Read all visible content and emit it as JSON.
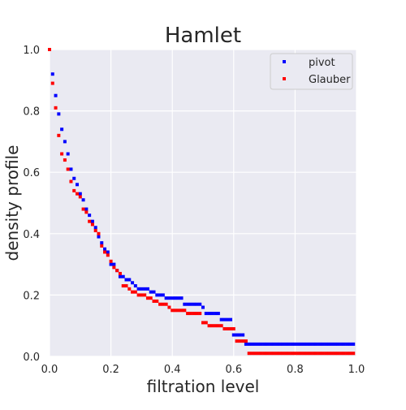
{
  "chart_data": {
    "type": "scatter",
    "title": "Hamlet",
    "xlabel": "filtration level",
    "ylabel": "density profile",
    "xlim": [
      0,
      1
    ],
    "ylim": [
      0,
      1
    ],
    "xticks": [
      "0.0",
      "0.2",
      "0.4",
      "0.6",
      "0.8",
      "1.0"
    ],
    "yticks": [
      "0.0",
      "0.2",
      "0.4",
      "0.6",
      "0.8",
      "1.0"
    ],
    "grid": true,
    "legend_position": "top-right",
    "colors": {
      "background": "#EAEAF2",
      "grid": "#FFFFFF",
      "pivot": "#0000FF",
      "glauber": "#FF0000"
    },
    "series": [
      {
        "name": "pivot",
        "color": "#0000FF",
        "x": [
          0.0,
          0.01,
          0.02,
          0.03,
          0.04,
          0.05,
          0.06,
          0.07,
          0.08,
          0.09,
          0.1,
          0.11,
          0.12,
          0.13,
          0.14,
          0.15,
          0.16,
          0.17,
          0.18,
          0.19,
          0.2,
          0.21,
          0.22,
          0.23,
          0.24,
          0.25,
          0.26,
          0.27,
          0.28,
          0.29,
          0.3,
          0.31,
          0.32,
          0.33,
          0.34,
          0.35,
          0.36,
          0.37,
          0.38,
          0.39,
          0.4,
          0.41,
          0.42,
          0.43,
          0.44,
          0.45,
          0.46,
          0.47,
          0.48,
          0.49,
          0.5,
          0.51,
          0.52,
          0.53,
          0.54,
          0.55,
          0.56,
          0.57,
          0.58,
          0.59,
          0.6,
          0.61,
          0.62,
          0.63,
          0.64,
          0.65,
          0.66,
          0.67,
          0.68,
          0.69,
          0.7,
          0.71,
          0.72,
          0.73,
          0.74,
          0.75,
          0.76,
          0.77,
          0.78,
          0.79,
          0.8,
          0.81,
          0.82,
          0.83,
          0.84,
          0.85,
          0.86,
          0.87,
          0.88,
          0.89,
          0.9,
          0.91,
          0.92,
          0.93,
          0.94,
          0.95,
          0.96,
          0.97,
          0.98,
          0.99
        ],
        "y": [
          1.0,
          0.92,
          0.85,
          0.79,
          0.74,
          0.7,
          0.66,
          0.61,
          0.58,
          0.56,
          0.53,
          0.51,
          0.48,
          0.46,
          0.44,
          0.42,
          0.39,
          0.37,
          0.35,
          0.34,
          0.3,
          0.3,
          0.28,
          0.26,
          0.26,
          0.25,
          0.25,
          0.24,
          0.23,
          0.22,
          0.22,
          0.22,
          0.22,
          0.21,
          0.21,
          0.2,
          0.2,
          0.2,
          0.19,
          0.19,
          0.19,
          0.19,
          0.19,
          0.19,
          0.17,
          0.17,
          0.17,
          0.17,
          0.17,
          0.17,
          0.16,
          0.14,
          0.14,
          0.14,
          0.14,
          0.14,
          0.12,
          0.12,
          0.12,
          0.12,
          0.07,
          0.07,
          0.07,
          0.07,
          0.04,
          0.04,
          0.04,
          0.04,
          0.04,
          0.04,
          0.04,
          0.04,
          0.04,
          0.04,
          0.04,
          0.04,
          0.04,
          0.04,
          0.04,
          0.04,
          0.04,
          0.04,
          0.04,
          0.04,
          0.04,
          0.04,
          0.04,
          0.04,
          0.04,
          0.04,
          0.04,
          0.04,
          0.04,
          0.04,
          0.04,
          0.04,
          0.04,
          0.04,
          0.04,
          0.04
        ]
      },
      {
        "name": "Glauber",
        "color": "#FF0000",
        "x": [
          0.0,
          0.01,
          0.02,
          0.03,
          0.04,
          0.05,
          0.06,
          0.07,
          0.08,
          0.09,
          0.1,
          0.11,
          0.12,
          0.13,
          0.14,
          0.15,
          0.16,
          0.17,
          0.18,
          0.19,
          0.2,
          0.21,
          0.22,
          0.23,
          0.24,
          0.25,
          0.26,
          0.27,
          0.28,
          0.29,
          0.3,
          0.31,
          0.32,
          0.33,
          0.34,
          0.35,
          0.36,
          0.37,
          0.38,
          0.39,
          0.4,
          0.41,
          0.42,
          0.43,
          0.44,
          0.45,
          0.46,
          0.47,
          0.48,
          0.49,
          0.5,
          0.51,
          0.52,
          0.53,
          0.54,
          0.55,
          0.56,
          0.57,
          0.58,
          0.59,
          0.6,
          0.61,
          0.62,
          0.63,
          0.64,
          0.65,
          0.66,
          0.67,
          0.68,
          0.69,
          0.7,
          0.71,
          0.72,
          0.73,
          0.74,
          0.75,
          0.76,
          0.77,
          0.78,
          0.79,
          0.8,
          0.81,
          0.82,
          0.83,
          0.84,
          0.85,
          0.86,
          0.87,
          0.88,
          0.89,
          0.9,
          0.91,
          0.92,
          0.93,
          0.94,
          0.95,
          0.96,
          0.97,
          0.98,
          0.99
        ],
        "y": [
          1.0,
          0.89,
          0.81,
          0.72,
          0.66,
          0.64,
          0.61,
          0.57,
          0.54,
          0.53,
          0.52,
          0.48,
          0.47,
          0.44,
          0.43,
          0.41,
          0.4,
          0.36,
          0.34,
          0.33,
          0.31,
          0.29,
          0.28,
          0.27,
          0.23,
          0.23,
          0.22,
          0.21,
          0.21,
          0.2,
          0.2,
          0.2,
          0.19,
          0.19,
          0.18,
          0.18,
          0.17,
          0.17,
          0.17,
          0.16,
          0.15,
          0.15,
          0.15,
          0.15,
          0.15,
          0.14,
          0.14,
          0.14,
          0.14,
          0.14,
          0.11,
          0.11,
          0.1,
          0.1,
          0.1,
          0.1,
          0.1,
          0.09,
          0.09,
          0.09,
          0.09,
          0.05,
          0.05,
          0.05,
          0.05,
          0.01,
          0.01,
          0.01,
          0.01,
          0.01,
          0.01,
          0.01,
          0.01,
          0.01,
          0.01,
          0.01,
          0.01,
          0.01,
          0.01,
          0.01,
          0.01,
          0.01,
          0.01,
          0.01,
          0.01,
          0.01,
          0.01,
          0.01,
          0.01,
          0.01,
          0.01,
          0.01,
          0.01,
          0.01,
          0.01,
          0.01,
          0.01,
          0.01,
          0.01,
          0.01
        ]
      }
    ]
  }
}
